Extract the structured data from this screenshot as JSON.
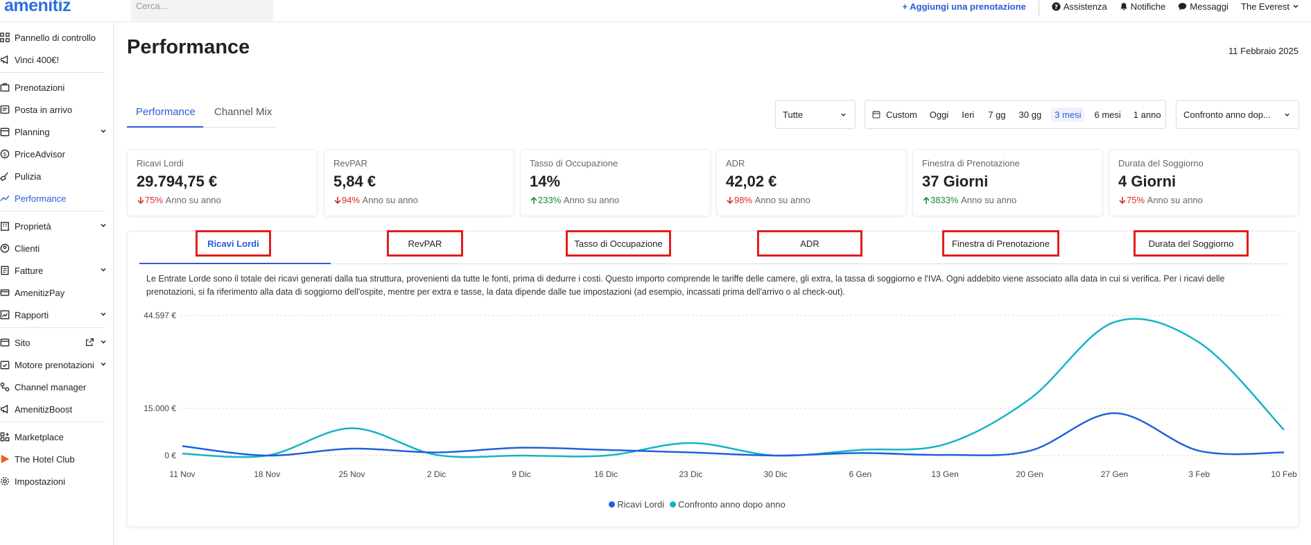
{
  "topbar": {
    "logo": "amenitiz",
    "search_placeholder": "Cerca...",
    "add_booking": "+  Aggiungi una prenotazione",
    "assistance": "Assistenza",
    "notifications": "Notifiche",
    "messages": "Messaggi",
    "property": "The Everest"
  },
  "sidebar": {
    "items": [
      {
        "label": "Pannello di controllo"
      },
      {
        "label": "Vinci 400€!"
      },
      {
        "label": "Prenotazioni"
      },
      {
        "label": "Posta in arrivo"
      },
      {
        "label": "Planning"
      },
      {
        "label": "PriceAdvisor"
      },
      {
        "label": "Pulizia"
      },
      {
        "label": "Performance"
      },
      {
        "label": "Proprietà"
      },
      {
        "label": "Clienti"
      },
      {
        "label": "Fatture"
      },
      {
        "label": "AmenitizPay"
      },
      {
        "label": "Rapporti"
      },
      {
        "label": "Sito"
      },
      {
        "label": "Motore prenotazioni"
      },
      {
        "label": "Channel manager"
      },
      {
        "label": "AmenitizBoost"
      },
      {
        "label": "Marketplace"
      },
      {
        "label": "The Hotel Club"
      },
      {
        "label": "Impostazioni"
      }
    ]
  },
  "page": {
    "title": "Performance",
    "date": "11 Febbraio 2025",
    "tabs": [
      "Performance",
      "Channel Mix"
    ]
  },
  "filters": {
    "channel": "Tutte",
    "custom": "Custom",
    "ranges": [
      "Oggi",
      "Ieri",
      "7 gg",
      "30 gg",
      "3 mesi",
      "6 mesi",
      "1 anno"
    ],
    "active_range": "3 mesi",
    "compare": "Confronto anno dop..."
  },
  "kpis": [
    {
      "label": "Ricavi Lordi",
      "value": "29.794,75 €",
      "change": "75%",
      "direction": "down",
      "suffix": "Anno su anno"
    },
    {
      "label": "RevPAR",
      "value": "5,84 €",
      "change": "94%",
      "direction": "down",
      "suffix": "Anno su anno"
    },
    {
      "label": "Tasso di Occupazione",
      "value": "14%",
      "change": "233%",
      "direction": "up",
      "suffix": "Anno su anno"
    },
    {
      "label": "ADR",
      "value": "42,02 €",
      "change": "98%",
      "direction": "down",
      "suffix": "Anno su anno"
    },
    {
      "label": "Finestra di Prenotazione",
      "value": "37 Giorni",
      "change": "3833%",
      "direction": "up",
      "suffix": "Anno su anno"
    },
    {
      "label": "Durata del Soggiorno",
      "value": "4 Giorni",
      "change": "75%",
      "direction": "down",
      "suffix": "Anno su anno"
    }
  ],
  "metric_tabs": [
    "Ricavi Lordi",
    "RevPAR",
    "Tasso di Occupazione",
    "ADR",
    "Finestra di Prenotazione",
    "Durata del Soggiorno"
  ],
  "description": "Le Entrate Lorde sono il totale dei ricavi generati dalla tua struttura, provenienti da tutte le fonti, prima di dedurre i costi. Questo importo comprende le tariffe delle camere, gli extra, la tassa di soggiorno e l'IVA. Ogni addebito viene associato alla data in cui si verifica. Per i ricavi delle prenotazioni, si fa riferimento alla data di soggiorno dell'ospite, mentre per extra e tasse, la data dipende dalle tue impostazioni (ad esempio, incassati prima dell'arrivo o al check-out).",
  "colors": {
    "accent": "#2a5bd7",
    "series1": "#2160dc",
    "series2": "#14b4c4",
    "down": "#d62a2a",
    "up": "#1a8a3a",
    "highlight": "#e01e1e"
  },
  "chart_data": {
    "type": "line",
    "x": [
      "11 Nov",
      "18 Nov",
      "25 Nov",
      "2 Dic",
      "9 Dic",
      "16 Dic",
      "23 Dic",
      "30 Dic",
      "6 Gen",
      "13 Gen",
      "20 Gen",
      "27 Gen",
      "3 Feb",
      "10 Feb"
    ],
    "y_ticks": [
      "0 €",
      "15.000 €",
      "44.597 €"
    ],
    "ylim": [
      0,
      44597
    ],
    "series": [
      {
        "name": "Ricavi Lordi",
        "values": [
          3000,
          0,
          2200,
          1000,
          2500,
          1800,
          1000,
          0,
          800,
          200,
          1500,
          13500,
          1500,
          1000
        ]
      },
      {
        "name": "Confronto anno dopo anno",
        "values": [
          600,
          0,
          8700,
          200,
          0,
          0,
          4000,
          0,
          1800,
          3600,
          18000,
          42500,
          36000,
          8200
        ]
      }
    ]
  }
}
